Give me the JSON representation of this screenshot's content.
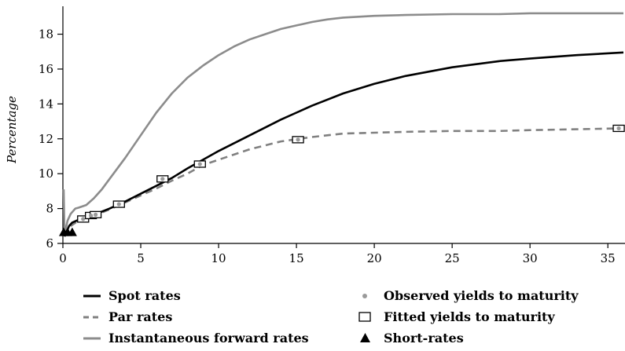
{
  "chart_data": {
    "type": "line",
    "title": "",
    "xlabel": "",
    "ylabel": "Percentage",
    "xlim": [
      0,
      36
    ],
    "ylim": [
      6,
      19.6
    ],
    "x_ticks": [
      "0",
      "5",
      "10",
      "15",
      "20",
      "25",
      "30",
      "35"
    ],
    "y_ticks": [
      "6",
      "8",
      "10",
      "12",
      "14",
      "16",
      "18"
    ],
    "grid": false,
    "legend_position": "bottom",
    "series": [
      {
        "name": "Spot rates",
        "style": "solid",
        "color": "#000000",
        "x": [
          0.1,
          0.25,
          0.4,
          0.6,
          1,
          1.5,
          2,
          3,
          4,
          5,
          6,
          7,
          8,
          9,
          10,
          12,
          14,
          16,
          18,
          20,
          22,
          25,
          28,
          30,
          33,
          36
        ],
        "y": [
          6.4,
          6.7,
          7.0,
          7.2,
          7.35,
          7.5,
          7.65,
          8.0,
          8.4,
          8.85,
          9.3,
          9.75,
          10.3,
          10.8,
          11.3,
          12.2,
          13.1,
          13.9,
          14.6,
          15.15,
          15.6,
          16.1,
          16.45,
          16.6,
          16.8,
          16.95
        ]
      },
      {
        "name": "Par rates",
        "style": "dashed",
        "color": "#808080",
        "x": [
          0.1,
          0.25,
          0.5,
          1,
          1.5,
          2,
          3,
          4,
          5,
          6,
          7,
          8,
          9,
          10,
          12,
          14,
          16,
          18,
          20,
          22,
          25,
          28,
          30,
          33,
          36
        ],
        "y": [
          6.4,
          6.7,
          7.0,
          7.3,
          7.45,
          7.6,
          7.95,
          8.35,
          8.75,
          9.15,
          9.6,
          10.0,
          10.5,
          10.8,
          11.4,
          11.85,
          12.1,
          12.3,
          12.35,
          12.4,
          12.45,
          12.45,
          12.5,
          12.55,
          12.6
        ]
      },
      {
        "name": "Instantaneous forward rates",
        "style": "solid",
        "color": "#8c8c8c",
        "x": [
          0.05,
          0.1,
          0.2,
          0.3,
          0.5,
          0.8,
          1,
          1.5,
          2,
          2.5,
          3,
          4,
          5,
          6,
          7,
          8,
          9,
          10,
          11,
          12,
          13,
          14,
          15,
          16,
          17,
          18,
          19,
          20,
          22,
          25,
          28,
          30,
          33,
          36
        ],
        "y": [
          9.1,
          6.6,
          6.9,
          7.3,
          7.7,
          8.0,
          8.05,
          8.2,
          8.6,
          9.1,
          9.7,
          10.9,
          12.2,
          13.5,
          14.6,
          15.5,
          16.2,
          16.8,
          17.3,
          17.7,
          18.0,
          18.3,
          18.5,
          18.7,
          18.85,
          18.95,
          19.0,
          19.05,
          19.1,
          19.15,
          19.15,
          19.2,
          19.2,
          19.2
        ]
      },
      {
        "name": "Observed yields to maturity",
        "style": "markers",
        "color": "#9a9a9a",
        "x": [
          1.3,
          1.8,
          2.1,
          3.6,
          6.4,
          8.8,
          15.1,
          35.7
        ],
        "y": [
          7.4,
          7.6,
          7.65,
          8.25,
          9.7,
          10.55,
          11.95,
          12.6
        ]
      },
      {
        "name": "Fitted yields to maturity",
        "style": "square-markers",
        "color": "#000000",
        "x": [
          1.3,
          1.8,
          2.1,
          3.6,
          6.4,
          8.8,
          15.1,
          35.7
        ],
        "y": [
          7.4,
          7.6,
          7.65,
          8.25,
          9.7,
          10.55,
          11.95,
          12.6
        ]
      },
      {
        "name": "Short-rates",
        "style": "triangle-markers",
        "color": "#000000",
        "x": [
          0.05,
          0.3,
          0.6
        ],
        "y": [
          6.65,
          6.65,
          6.65
        ]
      }
    ]
  }
}
